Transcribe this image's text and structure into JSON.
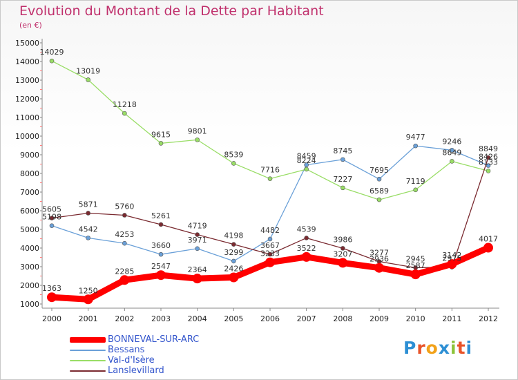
{
  "title": "Evolution du Montant de la Dette par Habitant",
  "subtitle": "(en €)",
  "logo": {
    "text": "Proxiti",
    "letters": [
      "P",
      "r",
      "o",
      "x",
      "i",
      "t",
      "i"
    ],
    "colors": [
      "#2d8fd4",
      "#e8542a",
      "#f2a21a",
      "#2d8fd4",
      "#8cc43a",
      "#e8542a",
      "#2d8fd4"
    ]
  },
  "chart_data": {
    "type": "line",
    "x": [
      "2000",
      "2001",
      "2002",
      "2003",
      "2004",
      "2005",
      "2006",
      "2007",
      "2008",
      "2009",
      "2010",
      "2011",
      "2012"
    ],
    "ylim": [
      1000,
      15000
    ],
    "yticks": [
      1000,
      2000,
      3000,
      4000,
      5000,
      6000,
      7000,
      8000,
      9000,
      10000,
      11000,
      12000,
      13000,
      14000,
      15000
    ],
    "grid": false,
    "legend_position": "bottom-left",
    "series": [
      {
        "name": "BONNEVAL-SUR-ARC",
        "color": "#ff0000",
        "width": 9,
        "marker": 7,
        "values": [
          1363,
          1250,
          2285,
          2547,
          2364,
          2426,
          3233,
          3522,
          3207,
          2936,
          2587,
          3142,
          4017
        ]
      },
      {
        "name": "Bessans",
        "color": "#6aa0d8",
        "width": 1.3,
        "marker": 3,
        "values": [
          5198,
          4542,
          4253,
          3660,
          3971,
          3299,
          4482,
          8459,
          8745,
          7695,
          9477,
          9246,
          8426
        ]
      },
      {
        "name": "Val-d'Isère",
        "color": "#99dd66",
        "width": 1.3,
        "marker": 3,
        "values": [
          14029,
          13019,
          11218,
          9615,
          9801,
          8539,
          7716,
          8224,
          7227,
          6589,
          7119,
          8649,
          8133
        ]
      },
      {
        "name": "Lanslevillard",
        "color": "#7a2a30",
        "width": 1.3,
        "marker": 3,
        "values": [
          5605,
          5871,
          5760,
          5261,
          4719,
          4198,
          3667,
          4539,
          3986,
          3277,
          2945,
          2975,
          8849
        ]
      }
    ]
  }
}
